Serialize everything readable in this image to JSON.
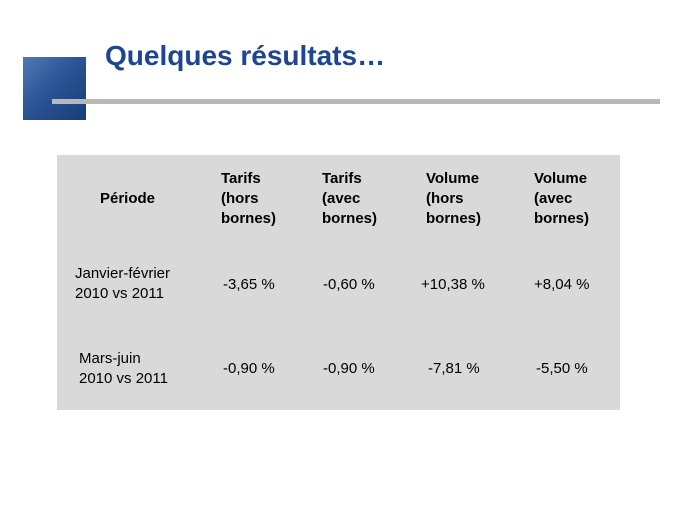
{
  "slide": {
    "title": "Quelques résultats…"
  },
  "table": {
    "headers": [
      "Période",
      "Tarifs\n(hors\nbornes)",
      "Tarifs\n(avec\nbornes)",
      "Volume\n(hors\nbornes)",
      "Volume\n(avec\nbornes)"
    ],
    "rows": [
      {
        "period": "Janvier-février\n2010 vs 2011",
        "values": [
          "-3,65 %",
          "-0,60 %",
          "+10,38 %",
          "+8,04 %"
        ]
      },
      {
        "period": "Mars-juin\n2010 vs 2011",
        "values": [
          "-0,90 %",
          "-0,90 %",
          "-7,81 %",
          "-5,50 %"
        ]
      }
    ]
  },
  "colors": {
    "title": "#1f4492",
    "accent_square": "#2b5596",
    "rule": "#b8b8b8",
    "table_background": "#d9d9d9"
  }
}
